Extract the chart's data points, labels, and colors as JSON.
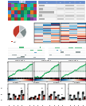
{
  "bg_color": "#ffffff",
  "panel_A": {
    "mosaic_colors": [
      "#e74c3c",
      "#3498db",
      "#2ecc71",
      "#f39c12",
      "#9b59b6",
      "#1abc9c",
      "#e67e22",
      "#16a085",
      "#8e44ad",
      "#c0392b",
      "#27ae60",
      "#f1c40f",
      "#7f8c8d",
      "#d35400",
      "#2980b9",
      "#a93226",
      "#117a65",
      "#1f618d",
      "#7d3c98",
      "#1e8449"
    ],
    "header_color": "#4472c4",
    "table_bg": "#f2f2f2",
    "table_header_color": "#4472c4",
    "table_bar_color": "#a0a0a0",
    "n_rows": 6,
    "n_cols": 9
  },
  "panel_B": {
    "pie_colors": [
      "#c0392b",
      "#e8e8e8",
      "#7f8c8d",
      "#bdc3c7"
    ],
    "pie_sizes": [
      40,
      20,
      25,
      15
    ],
    "legend_color1": "#c0392b",
    "legend_color2": "#e8e8e8"
  },
  "panel_C": {
    "cmap": "RdBu_r",
    "n_cols": 2,
    "gap_color": "#ffffff"
  },
  "panel_D": {
    "track_colors_left": [
      "#27ae60",
      "#27ae60",
      "#2980b9",
      "#7f8c8d",
      "#7f8c8d"
    ],
    "track_colors_right": [
      "#27ae60",
      "#2980b9",
      "#7f8c8d",
      "#7f8c8d",
      "#2980b9"
    ],
    "chrom_color": "#2c3e50"
  },
  "panel_E": {
    "curve_colors": [
      "#27ae60",
      "#27ae60",
      "#27ae60"
    ],
    "heatmap_colors_top": [
      "#e74c3c",
      "#3498db",
      "#e74c3c"
    ],
    "heatmap_colors_bot": [
      "#2980b9",
      "#c0392b",
      "#2980b9"
    ],
    "bg_color": "#f8f8f8"
  },
  "panel_F": {
    "bar_colors": [
      "#7f8c8d",
      "#c0392b"
    ],
    "n_panels": 4,
    "n_groups": 4,
    "xlabel_color": "#000000"
  }
}
